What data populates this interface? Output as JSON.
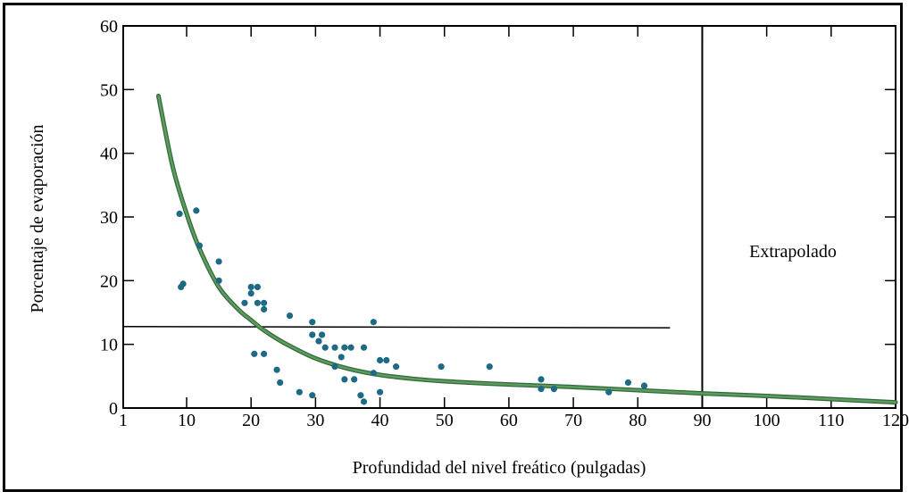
{
  "chart_data": {
    "type": "scatter",
    "title": "",
    "xlabel": "Profundidad del nivel freático (pulgadas)",
    "ylabel": "Porcentaje de evaporación",
    "xlim": [
      1,
      120
    ],
    "ylim": [
      0,
      60
    ],
    "x_ticks": [
      1,
      10,
      20,
      30,
      40,
      50,
      60,
      70,
      80,
      90,
      100,
      110,
      120
    ],
    "x_tick_labels": [
      "1",
      "10",
      "20",
      "30",
      "40",
      "50",
      "60",
      "70",
      "80",
      "90",
      "100",
      "110",
      "120"
    ],
    "y_ticks": [
      0,
      10,
      20,
      30,
      40,
      50,
      60
    ],
    "y_tick_labels": [
      "0",
      "10",
      "20",
      "30",
      "40",
      "50",
      "60"
    ],
    "grid": false,
    "annotation": "Extrapolado",
    "extrapolation_boundary_x": 90,
    "reference_line": {
      "y": 12.8,
      "x_start": 1,
      "x_end": 85
    },
    "point_color": "#1e6a84",
    "curve_color": "#5f9a5f",
    "points": [
      {
        "x": 9,
        "y": 30.5
      },
      {
        "x": 11.5,
        "y": 31
      },
      {
        "x": 12,
        "y": 25.5
      },
      {
        "x": 9.2,
        "y": 19
      },
      {
        "x": 9.5,
        "y": 19.5
      },
      {
        "x": 15,
        "y": 23
      },
      {
        "x": 15,
        "y": 20
      },
      {
        "x": 19,
        "y": 16.5
      },
      {
        "x": 20,
        "y": 19
      },
      {
        "x": 21,
        "y": 19
      },
      {
        "x": 20,
        "y": 18
      },
      {
        "x": 21,
        "y": 16.5
      },
      {
        "x": 22,
        "y": 16.5
      },
      {
        "x": 22,
        "y": 15.5
      },
      {
        "x": 26,
        "y": 14.5
      },
      {
        "x": 29.5,
        "y": 13.5
      },
      {
        "x": 29.5,
        "y": 11.5
      },
      {
        "x": 30.5,
        "y": 10.5
      },
      {
        "x": 31,
        "y": 11.5
      },
      {
        "x": 31.5,
        "y": 9.5
      },
      {
        "x": 33,
        "y": 9.5
      },
      {
        "x": 34.5,
        "y": 9.5
      },
      {
        "x": 35.5,
        "y": 9.5
      },
      {
        "x": 37.5,
        "y": 9.5
      },
      {
        "x": 39,
        "y": 13.5
      },
      {
        "x": 34,
        "y": 8
      },
      {
        "x": 33,
        "y": 6.5
      },
      {
        "x": 40,
        "y": 7.5
      },
      {
        "x": 41,
        "y": 7.5
      },
      {
        "x": 42.5,
        "y": 6.5
      },
      {
        "x": 39,
        "y": 5.5
      },
      {
        "x": 34.5,
        "y": 4.5
      },
      {
        "x": 36,
        "y": 4.5
      },
      {
        "x": 20.5,
        "y": 8.5
      },
      {
        "x": 22,
        "y": 8.5
      },
      {
        "x": 24,
        "y": 6
      },
      {
        "x": 24.5,
        "y": 4
      },
      {
        "x": 27.5,
        "y": 2.5
      },
      {
        "x": 29.5,
        "y": 2
      },
      {
        "x": 37,
        "y": 2
      },
      {
        "x": 40,
        "y": 2.5
      },
      {
        "x": 37.5,
        "y": 1
      },
      {
        "x": 49.5,
        "y": 6.5
      },
      {
        "x": 57,
        "y": 6.5
      },
      {
        "x": 65,
        "y": 4.5
      },
      {
        "x": 65,
        "y": 3
      },
      {
        "x": 67,
        "y": 3
      },
      {
        "x": 75.5,
        "y": 2.5
      },
      {
        "x": 78.5,
        "y": 4
      },
      {
        "x": 81,
        "y": 3.5
      }
    ],
    "curve": {
      "name": "",
      "x": [
        6,
        8,
        10,
        12,
        15,
        18,
        20,
        22,
        25,
        30,
        35,
        40,
        45,
        50,
        60,
        70,
        80,
        90,
        100,
        110,
        120
      ],
      "y": [
        49,
        38,
        30.5,
        25,
        19,
        15.5,
        13.8,
        12.2,
        10.3,
        7.8,
        6.2,
        5.2,
        4.6,
        4.2,
        3.7,
        3.3,
        2.8,
        2.3,
        1.9,
        1.4,
        0.9
      ]
    }
  }
}
